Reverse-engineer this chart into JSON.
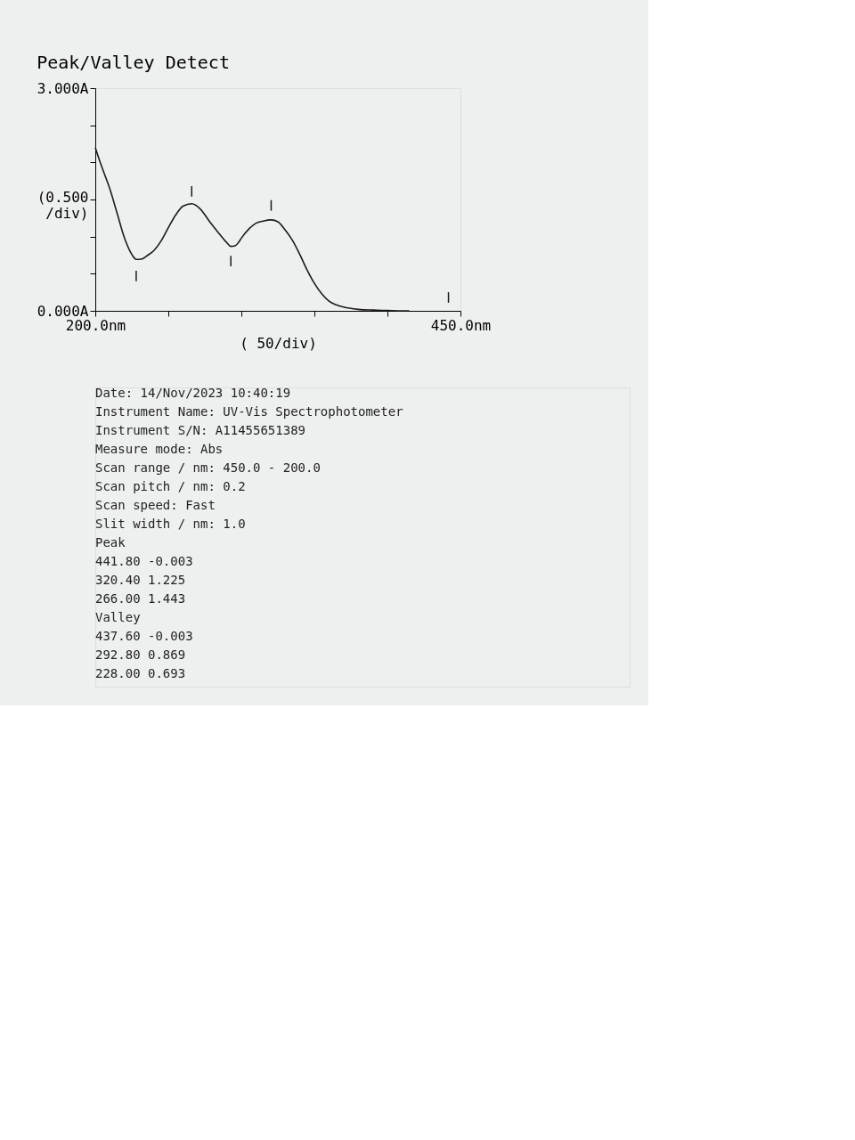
{
  "chart_data": {
    "type": "line",
    "title": "Peak/Valley Detect",
    "xlabel": "(  50/div)",
    "ylabel": "(0.500 /div)",
    "xlim": [
      200,
      450
    ],
    "ylim": [
      0,
      3
    ],
    "xticks": [
      {
        "value": 200,
        "label": "200.0nm"
      },
      {
        "value": 250,
        "label": null
      },
      {
        "value": 300,
        "label": null
      },
      {
        "value": 350,
        "label": null
      },
      {
        "value": 400,
        "label": null
      },
      {
        "value": 450,
        "label": "450.0nm"
      }
    ],
    "yticks": [
      {
        "value": 0,
        "label": "0.000A"
      },
      {
        "value": 0.5,
        "label": null
      },
      {
        "value": 1,
        "label": null
      },
      {
        "value": 1.5,
        "label": null
      },
      {
        "value": 2,
        "label": null
      },
      {
        "value": 2.5,
        "label": null
      },
      {
        "value": 3,
        "label": "3.000A"
      }
    ],
    "grid": false,
    "series": [
      {
        "type": "line",
        "color": "#1a1a1a",
        "x": [
          200,
          202,
          205,
          210,
          215,
          220,
          225,
          228,
          232,
          236,
          240,
          245,
          250,
          255,
          260,
          266,
          272,
          278,
          284,
          290,
          292.8,
          296,
          298,
          300,
          305,
          310,
          315,
          320.4,
          325,
          330,
          335,
          340,
          345,
          350,
          355,
          360,
          365,
          370,
          380,
          390,
          400,
          410,
          415
        ],
        "values": [
          2.2,
          2.08,
          1.91,
          1.64,
          1.31,
          0.98,
          0.76,
          0.693,
          0.7,
          0.75,
          0.81,
          0.94,
          1.12,
          1.29,
          1.41,
          1.443,
          1.37,
          1.21,
          1.06,
          0.92,
          0.869,
          0.88,
          0.92,
          0.98,
          1.1,
          1.18,
          1.21,
          1.225,
          1.2,
          1.09,
          0.95,
          0.76,
          0.55,
          0.37,
          0.23,
          0.13,
          0.08,
          0.05,
          0.02,
          0.01,
          0.005,
          0,
          0
        ]
      },
      {
        "type": "scatter",
        "color": "#1a1a1a",
        "x": [
          228,
          266,
          292.8,
          320.4,
          441.8
        ],
        "values": [
          0.47,
          1.61,
          0.67,
          1.42,
          0.18
        ]
      }
    ],
    "annotations": [
      "Date: 14/Nov/2023 10:40:19",
      "Instrument Name: UV-Vis Spectrophotometer",
      "Instrument S/N: A11455651389",
      "Measure mode: Abs",
      "Scan range / nm: 450.0 - 200.0",
      "Scan pitch / nm: 0.2",
      "Scan speed: Fast",
      "Slit width / nm: 1.0",
      "Peak",
      "441.80 -0.003",
      "320.40 1.225",
      "266.00 1.443",
      "Valley",
      "437.60 -0.003",
      "292.80 0.869",
      "228.00 0.693"
    ]
  }
}
